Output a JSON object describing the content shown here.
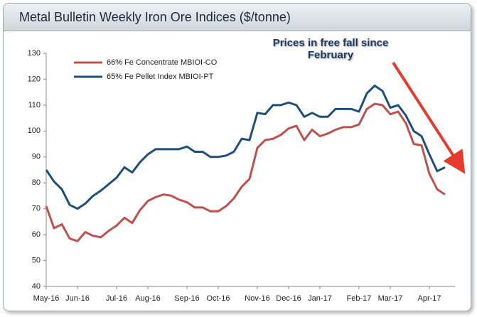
{
  "chart_data": {
    "type": "line",
    "title": "Metal Bulletin Weekly Iron Ore Indices ($/tonne)",
    "annotation": "Prices in free fall since February",
    "categories": [
      "May-16",
      null,
      null,
      null,
      "Jun-16",
      null,
      null,
      null,
      null,
      "Jul-16",
      null,
      null,
      null,
      "Aug-16",
      null,
      null,
      null,
      null,
      "Sep-16",
      null,
      null,
      null,
      "Oct-16",
      null,
      null,
      null,
      null,
      "Nov-16",
      null,
      null,
      null,
      "Dec-16",
      null,
      null,
      null,
      "Jan-17",
      null,
      null,
      null,
      null,
      "Feb-17",
      null,
      null,
      null,
      "Mar-17",
      null,
      null,
      null,
      null,
      "Apr-17",
      null,
      null
    ],
    "series": [
      {
        "name": "66% Fe Concentrate MBIOI-CO",
        "color": "#c0504d",
        "values": [
          71,
          62.5,
          64,
          58.5,
          57.5,
          61,
          59.5,
          59,
          61.5,
          63.5,
          66.5,
          64.5,
          69.5,
          73,
          74.5,
          75.5,
          75,
          73.5,
          72.5,
          70.5,
          70.5,
          69,
          69,
          71,
          74,
          78.5,
          81.5,
          93.5,
          96.5,
          97,
          98.5,
          101,
          102,
          96.5,
          100.5,
          98,
          99,
          100.5,
          101.5,
          101.5,
          102.5,
          108.5,
          110.5,
          110,
          106.5,
          107.5,
          103,
          95,
          94.5,
          83.5,
          77.5,
          75.5
        ]
      },
      {
        "name": "65% Fe Pellet Index MBIOI-PT",
        "color": "#1f4e79",
        "values": [
          85,
          80.5,
          77.5,
          71.5,
          70,
          72,
          75,
          77,
          79.5,
          82,
          86,
          84,
          88,
          91,
          93,
          93,
          93,
          93,
          94,
          92,
          92,
          90,
          90,
          90.5,
          92,
          97,
          96.5,
          107,
          106.5,
          110,
          110,
          111,
          110,
          105.5,
          107,
          105.5,
          105.5,
          108.5,
          108.5,
          108.5,
          107.5,
          114.5,
          117.5,
          115.5,
          109,
          110,
          106,
          100,
          98,
          91,
          84.5,
          86
        ]
      }
    ],
    "ylim": [
      40,
      130
    ],
    "yticks": [
      40,
      50,
      60,
      70,
      80,
      90,
      100,
      110,
      120,
      130
    ],
    "legend": "upper left",
    "grid": false
  }
}
